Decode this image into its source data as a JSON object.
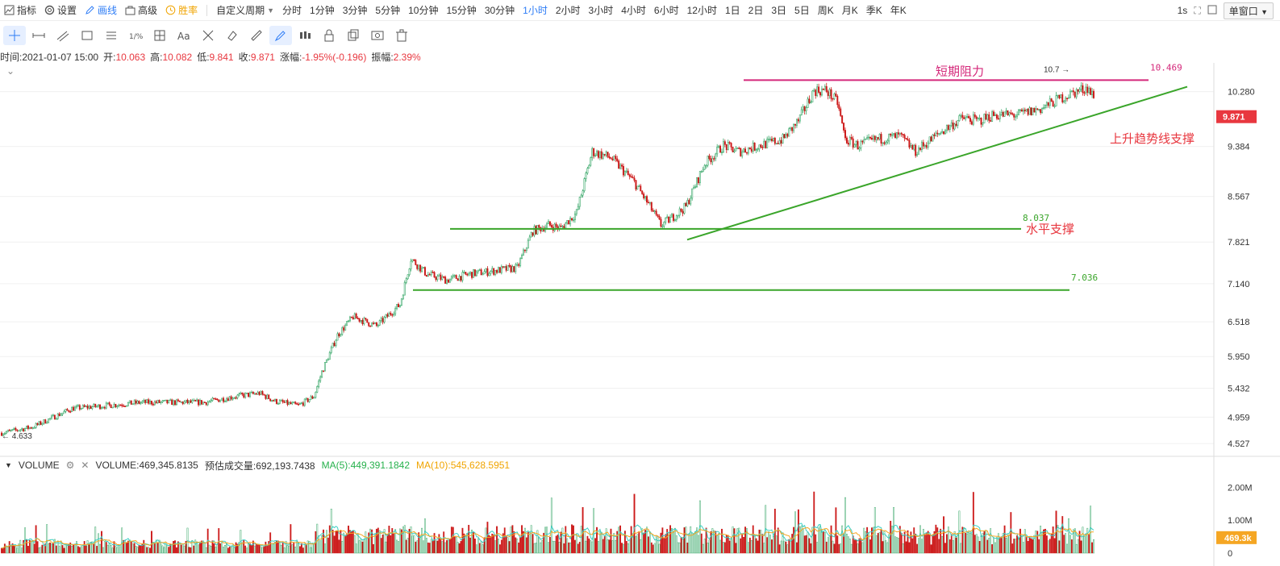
{
  "toolbar": {
    "indicators": "指标",
    "settings": "设置",
    "draw": "画线",
    "advanced": "高级",
    "winrate": "胜率",
    "custom_period": "自定义周期",
    "periods": [
      "分时",
      "1分钟",
      "3分钟",
      "5分钟",
      "10分钟",
      "15分钟",
      "30分钟",
      "1小时",
      "2小时",
      "3小时",
      "4小时",
      "6小时",
      "12小时",
      "1日",
      "2日",
      "3日",
      "5日",
      "周K",
      "月K",
      "季K",
      "年K"
    ],
    "active_period": "1小时",
    "refresh_interval": "1s",
    "window_mode": "单窗口"
  },
  "info": {
    "time_label": "时间:",
    "time_value": "2021-01-07 15:00",
    "open_label": "开:",
    "open_value": "10.063",
    "high_label": "高:",
    "high_value": "10.082",
    "low_label": "低:",
    "low_value": "9.841",
    "close_label": "收:",
    "close_value": "9.871",
    "change_label": "涨幅:",
    "change_value": "-1.95%(-0.196)",
    "amp_label": "振幅:",
    "amp_value": "2.39%"
  },
  "volume": {
    "title": "VOLUME",
    "value_text": "VOLUME:469,345.8135",
    "est_text": "预估成交量:692,193.7438",
    "ma5_text": "MA(5):449,391.1842",
    "ma10_text": "MA(10):545,628.5951",
    "current_tag": "469.3k",
    "axis": [
      "2.00M",
      "1.00M",
      "0"
    ]
  },
  "price_axis": [
    "10.280",
    "9.384",
    "8.567",
    "7.821",
    "7.140",
    "6.518",
    "5.950",
    "5.432",
    "4.959",
    "4.527"
  ],
  "current_price_tag": "9.871",
  "colors": {
    "up": "#8fd4a8",
    "down": "#cc1a1a",
    "ma5": "#3ccfc4",
    "ma10": "#f5a623",
    "resist": "#d4287a",
    "support": "#3aa52a",
    "accent": "#2d7cf6",
    "price_tag": "#e8373f"
  },
  "chart_data": {
    "type": "candlestick",
    "annotations": {
      "resistance_label": "短期阻力",
      "resistance_price": "10.469",
      "trend_label": "上升趋势线支撑",
      "support_label": "水平支撑",
      "support_price": "8.037",
      "lower_support_price": "7.036",
      "high_marker": "10.7",
      "low_marker": "4.633"
    },
    "ylim": [
      4.45,
      10.75
    ],
    "anchors": [
      [
        0,
        4.7
      ],
      [
        20,
        4.8
      ],
      [
        45,
        5.1
      ],
      [
        90,
        5.2
      ],
      [
        130,
        5.2
      ],
      [
        150,
        5.3
      ],
      [
        165,
        5.35
      ],
      [
        175,
        5.22
      ],
      [
        190,
        5.15
      ],
      [
        200,
        5.3
      ],
      [
        205,
        5.7
      ],
      [
        215,
        6.3
      ],
      [
        225,
        6.6
      ],
      [
        240,
        6.45
      ],
      [
        255,
        6.8
      ],
      [
        262,
        7.55
      ],
      [
        272,
        7.3
      ],
      [
        285,
        7.2
      ],
      [
        300,
        7.3
      ],
      [
        315,
        7.35
      ],
      [
        330,
        7.4
      ],
      [
        340,
        8.0
      ],
      [
        350,
        8.1
      ],
      [
        358,
        8.05
      ],
      [
        368,
        8.3
      ],
      [
        378,
        9.3
      ],
      [
        390,
        9.2
      ],
      [
        405,
        8.8
      ],
      [
        415,
        8.4
      ],
      [
        422,
        8.1
      ],
      [
        428,
        8.2
      ],
      [
        438,
        8.4
      ],
      [
        450,
        9.1
      ],
      [
        462,
        9.4
      ],
      [
        472,
        9.3
      ],
      [
        485,
        9.4
      ],
      [
        500,
        9.5
      ],
      [
        510,
        9.8
      ],
      [
        520,
        10.3
      ],
      [
        528,
        10.3
      ],
      [
        535,
        10.1
      ],
      [
        540,
        9.5
      ],
      [
        548,
        9.4
      ],
      [
        560,
        9.5
      ],
      [
        575,
        9.55
      ],
      [
        585,
        9.3
      ],
      [
        600,
        9.6
      ],
      [
        615,
        9.85
      ],
      [
        625,
        9.8
      ],
      [
        635,
        9.9
      ],
      [
        650,
        9.9
      ],
      [
        665,
        10.0
      ],
      [
        680,
        10.2
      ],
      [
        695,
        10.35
      ],
      [
        700,
        10.15
      ]
    ],
    "n_candles": 700,
    "volume_ylim": [
      0,
      2300000
    ]
  }
}
